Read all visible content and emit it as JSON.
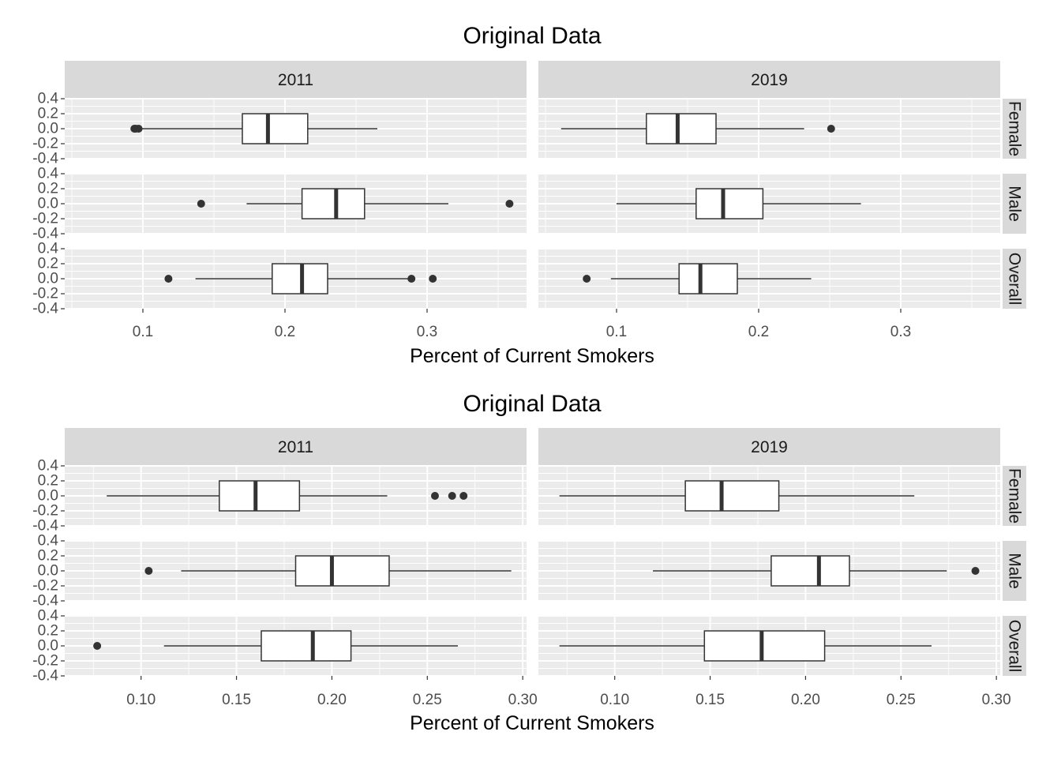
{
  "chart_data": [
    {
      "type": "boxplot",
      "title": "Original Data",
      "xlabel": "Percent of Current Smokers",
      "ylabel": "",
      "columns": [
        "2011",
        "2019"
      ],
      "rows": [
        "Female",
        "Male",
        "Overall"
      ],
      "xlim": [
        0.045,
        0.37
      ],
      "xticks": [
        0.1,
        0.2,
        0.3
      ],
      "xtick_labels": [
        "0.1",
        "0.2",
        "0.3"
      ],
      "ylim": [
        -0.4,
        0.4
      ],
      "yticks": [
        0.4,
        0.2,
        0.0,
        -0.2,
        -0.4
      ],
      "ytick_labels": [
        "0.4",
        "0.2",
        "0.0",
        "-0.2",
        "-0.4"
      ],
      "grid": true,
      "panels": [
        {
          "column": "2011",
          "row": "Female",
          "whisker_low": 0.099,
          "q1": 0.17,
          "median": 0.188,
          "q3": 0.216,
          "whisker_high": 0.265,
          "outliers": [
            0.094,
            0.095,
            0.097
          ]
        },
        {
          "column": "2011",
          "row": "Male",
          "whisker_low": 0.173,
          "q1": 0.212,
          "median": 0.236,
          "q3": 0.256,
          "whisker_high": 0.315,
          "outliers": [
            0.141,
            0.358
          ]
        },
        {
          "column": "2011",
          "row": "Overall",
          "whisker_low": 0.137,
          "q1": 0.191,
          "median": 0.212,
          "q3": 0.23,
          "whisker_high": 0.287,
          "outliers": [
            0.118,
            0.289,
            0.304
          ]
        },
        {
          "column": "2019",
          "row": "Female",
          "whisker_low": 0.061,
          "q1": 0.121,
          "median": 0.143,
          "q3": 0.17,
          "whisker_high": 0.232,
          "outliers": [
            0.251
          ]
        },
        {
          "column": "2019",
          "row": "Male",
          "whisker_low": 0.1,
          "q1": 0.156,
          "median": 0.175,
          "q3": 0.203,
          "whisker_high": 0.272,
          "outliers": []
        },
        {
          "column": "2019",
          "row": "Overall",
          "whisker_low": 0.096,
          "q1": 0.144,
          "median": 0.159,
          "q3": 0.185,
          "whisker_high": 0.237,
          "outliers": [
            0.079
          ]
        }
      ]
    },
    {
      "type": "boxplot",
      "title": "Original Data",
      "xlabel": "Percent of Current Smokers",
      "ylabel": "",
      "columns": [
        "2011",
        "2019"
      ],
      "rows": [
        "Female",
        "Male",
        "Overall"
      ],
      "xlim": [
        0.06,
        0.302
      ],
      "xticks": [
        0.1,
        0.15,
        0.2,
        0.25,
        0.3
      ],
      "xtick_labels": [
        "0.10",
        "0.15",
        "0.20",
        "0.25",
        "0.30"
      ],
      "ylim": [
        -0.4,
        0.4
      ],
      "yticks": [
        0.4,
        0.2,
        0.0,
        -0.2,
        -0.4
      ],
      "ytick_labels": [
        "0.4",
        "0.2",
        "0.0",
        "-0.2",
        "-0.4"
      ],
      "grid": true,
      "panels": [
        {
          "column": "2011",
          "row": "Female",
          "whisker_low": 0.082,
          "q1": 0.141,
          "median": 0.16,
          "q3": 0.183,
          "whisker_high": 0.229,
          "outliers": [
            0.254,
            0.263,
            0.269
          ]
        },
        {
          "column": "2011",
          "row": "Male",
          "whisker_low": 0.121,
          "q1": 0.181,
          "median": 0.2,
          "q3": 0.23,
          "whisker_high": 0.294,
          "outliers": [
            0.104
          ]
        },
        {
          "column": "2011",
          "row": "Overall",
          "whisker_low": 0.112,
          "q1": 0.163,
          "median": 0.19,
          "q3": 0.21,
          "whisker_high": 0.266,
          "outliers": [
            0.077
          ]
        },
        {
          "column": "2019",
          "row": "Female",
          "whisker_low": 0.071,
          "q1": 0.137,
          "median": 0.156,
          "q3": 0.186,
          "whisker_high": 0.257,
          "outliers": []
        },
        {
          "column": "2019",
          "row": "Male",
          "whisker_low": 0.12,
          "q1": 0.182,
          "median": 0.207,
          "q3": 0.223,
          "whisker_high": 0.274,
          "outliers": [
            0.289
          ]
        },
        {
          "column": "2019",
          "row": "Overall",
          "whisker_low": 0.071,
          "q1": 0.147,
          "median": 0.177,
          "q3": 0.21,
          "whisker_high": 0.266,
          "outliers": []
        }
      ]
    }
  ]
}
